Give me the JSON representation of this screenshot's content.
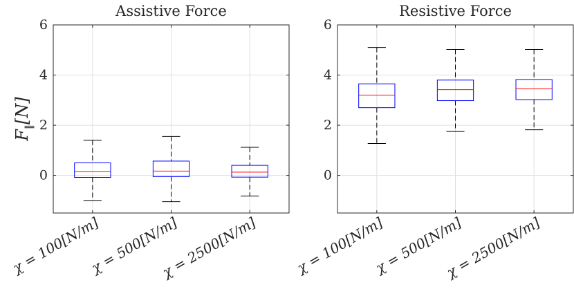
{
  "chart_data": [
    {
      "type": "box",
      "title": "Assistive Force",
      "ylabel": "F",
      "ylabel_subscript": "‖",
      "ylabel_unit": "[N]",
      "ylim": [
        -1.5,
        6
      ],
      "yticks": [
        0,
        2,
        4,
        6
      ],
      "grid": true,
      "categories": [
        "χ = 100[N/m]",
        "χ = 500[N/m]",
        "χ = 2500[N/m]"
      ],
      "boxes": [
        {
          "min": -1.0,
          "q1": -0.08,
          "median": 0.15,
          "q3": 0.5,
          "max": 1.4
        },
        {
          "min": -1.05,
          "q1": -0.05,
          "median": 0.17,
          "q3": 0.57,
          "max": 1.55
        },
        {
          "min": -0.82,
          "q1": -0.07,
          "median": 0.13,
          "q3": 0.4,
          "max": 1.12
        }
      ]
    },
    {
      "type": "box",
      "title": "Resistive Force",
      "ylim": [
        -1.5,
        6
      ],
      "yticks": [
        0,
        2,
        4,
        6
      ],
      "grid": true,
      "categories": [
        "χ = 100[N/m]",
        "χ = 500[N/m]",
        "χ = 2500[N/m]"
      ],
      "boxes": [
        {
          "min": 1.27,
          "q1": 2.7,
          "median": 3.2,
          "q3": 3.65,
          "max": 5.1
        },
        {
          "min": 1.75,
          "q1": 2.98,
          "median": 3.42,
          "q3": 3.8,
          "max": 5.02
        },
        {
          "min": 1.82,
          "q1": 3.02,
          "median": 3.45,
          "q3": 3.82,
          "max": 5.02
        }
      ]
    }
  ],
  "colors": {
    "box": "#0000ff",
    "median": "#ff0000",
    "whisker": "#000000",
    "grid": "#dfdfdf",
    "axis": "#262626"
  }
}
